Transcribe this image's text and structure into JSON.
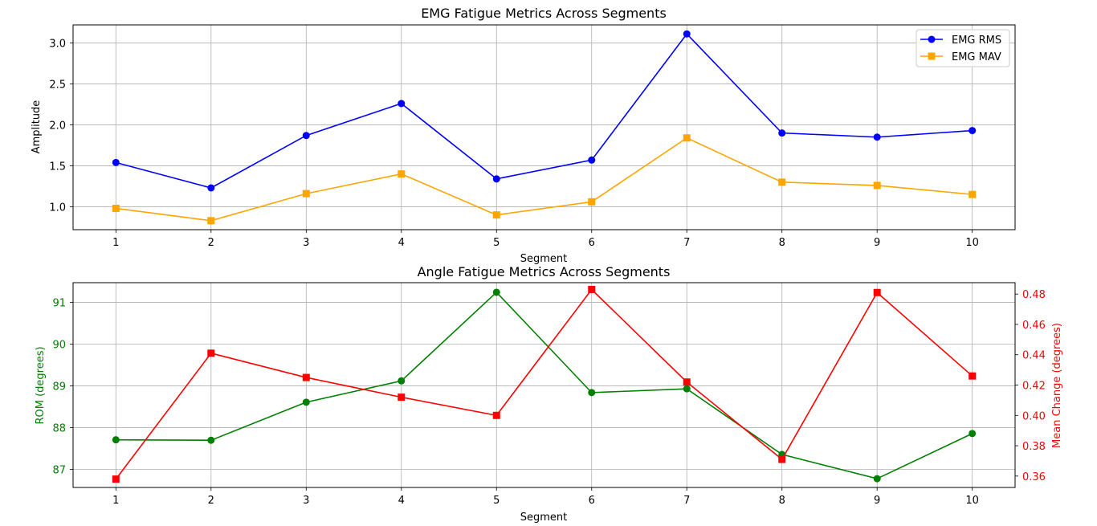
{
  "chart_data": [
    {
      "type": "line",
      "title": "EMG Fatigue Metrics Across Segments",
      "xlabel": "Segment",
      "ylabel": "Amplitude",
      "x": [
        1,
        2,
        3,
        4,
        5,
        6,
        7,
        8,
        9,
        10
      ],
      "x_ticks": [
        "1",
        "2",
        "3",
        "4",
        "5",
        "6",
        "7",
        "8",
        "9",
        "10"
      ],
      "y_ticks": [
        "1.0",
        "1.5",
        "2.0",
        "2.5",
        "3.0"
      ],
      "ylim": [
        0.72,
        3.22
      ],
      "xlim": [
        0.55,
        10.45
      ],
      "grid": true,
      "legend": "top-right",
      "series": [
        {
          "name": "EMG RMS",
          "color": "#0000ff",
          "marker": "circle",
          "values": [
            1.54,
            1.23,
            1.87,
            2.26,
            1.34,
            1.57,
            3.11,
            1.9,
            1.85,
            1.93
          ]
        },
        {
          "name": "EMG MAV",
          "color": "#ffa500",
          "marker": "square",
          "values": [
            0.98,
            0.83,
            1.16,
            1.4,
            0.9,
            1.06,
            1.84,
            1.3,
            1.26,
            1.15
          ]
        }
      ]
    },
    {
      "type": "line",
      "title": "Angle Fatigue Metrics Across Segments",
      "xlabel": "Segment",
      "ylabel_left": "ROM (degrees)",
      "ylabel_right": "Mean Change (degrees)",
      "x": [
        1,
        2,
        3,
        4,
        5,
        6,
        7,
        8,
        9,
        10
      ],
      "x_ticks": [
        "1",
        "2",
        "3",
        "4",
        "5",
        "6",
        "7",
        "8",
        "9",
        "10"
      ],
      "y_ticks_left": [
        "87",
        "88",
        "89",
        "90",
        "91"
      ],
      "y_ticks_right": [
        "0.36",
        "0.38",
        "0.40",
        "0.42",
        "0.44",
        "0.46",
        "0.48"
      ],
      "ylim_left": [
        86.57,
        91.47
      ],
      "ylim_right": [
        0.3525,
        0.4875
      ],
      "xlim": [
        0.55,
        10.45
      ],
      "grid": true,
      "series": [
        {
          "axis": "left",
          "color": "#008000",
          "marker": "circle",
          "values": [
            87.71,
            87.7,
            88.61,
            89.12,
            91.24,
            88.84,
            88.93,
            87.36,
            86.78,
            87.86
          ]
        },
        {
          "axis": "right",
          "color": "#ff0000",
          "marker": "square",
          "values": [
            0.358,
            0.441,
            0.425,
            0.412,
            0.4,
            0.483,
            0.422,
            0.371,
            0.481,
            0.426
          ]
        }
      ]
    }
  ]
}
